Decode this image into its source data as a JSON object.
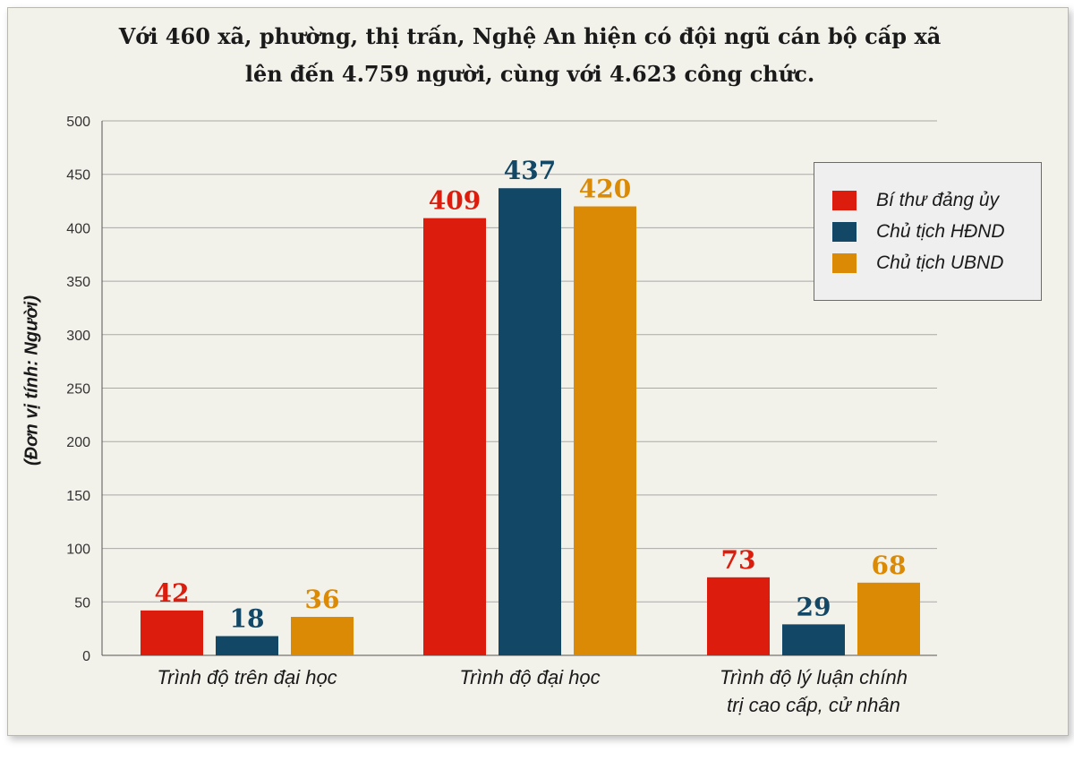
{
  "chart_data": {
    "type": "bar",
    "title_lines": [
      "Với 460 xã, phường, thị trấn, Nghệ An hiện có đội ngũ cán bộ cấp xã",
      "lên đến 4.759 người, cùng với 4.623 công chức."
    ],
    "ylabel": "(Đơn vị tính: Người)",
    "xlabel": "",
    "ylim": [
      0,
      500
    ],
    "yticks": [
      0,
      50,
      100,
      150,
      200,
      250,
      300,
      350,
      400,
      450,
      500
    ],
    "grid": true,
    "legend_position": "top-right",
    "categories": [
      [
        "Trình độ trên đại học"
      ],
      [
        "Trình độ đại học"
      ],
      [
        "Trình độ lý luận chính",
        "trị cao cấp, cử nhân"
      ]
    ],
    "series": [
      {
        "name": "Bí thư đảng ủy",
        "color": "#dc1c0c",
        "values": [
          42,
          409,
          73
        ]
      },
      {
        "name": "Chủ tịch HĐND",
        "color": "#124766",
        "values": [
          18,
          437,
          29
        ]
      },
      {
        "name": "Chủ tịch UBND",
        "color": "#db8a05",
        "values": [
          36,
          420,
          68
        ]
      }
    ]
  }
}
